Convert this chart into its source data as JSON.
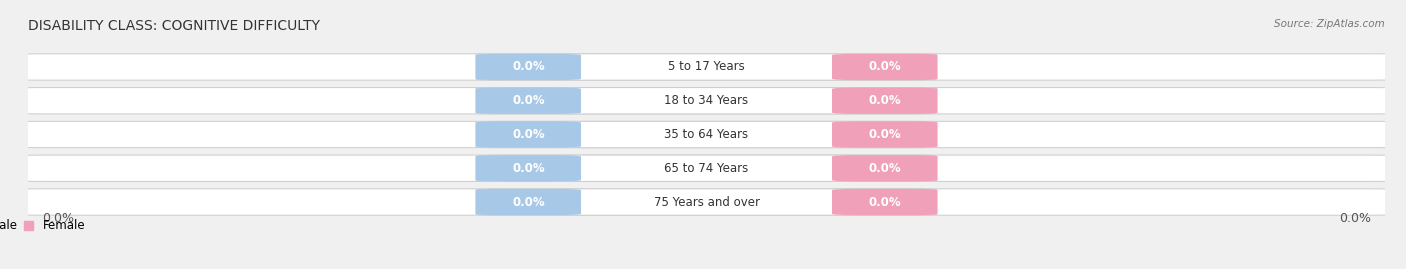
{
  "title": "DISABILITY CLASS: COGNITIVE DIFFICULTY",
  "source": "Source: ZipAtlas.com",
  "categories": [
    "5 to 17 Years",
    "18 to 34 Years",
    "35 to 64 Years",
    "65 to 74 Years",
    "75 Years and over"
  ],
  "male_values": [
    0.0,
    0.0,
    0.0,
    0.0,
    0.0
  ],
  "female_values": [
    0.0,
    0.0,
    0.0,
    0.0,
    0.0
  ],
  "male_color": "#a8c8e8",
  "female_color": "#f0a0b8",
  "bar_bg_color": "#ffffff",
  "bar_stroke_color": "#cccccc",
  "row_bg_color": "#ebebeb",
  "background_color": "#f0f0f0",
  "title_fontsize": 10,
  "label_fontsize": 8.5,
  "tick_fontsize": 9,
  "x_left_label": "0.0%",
  "x_right_label": "0.0%",
  "male_legend": "Male",
  "female_legend": "Female"
}
